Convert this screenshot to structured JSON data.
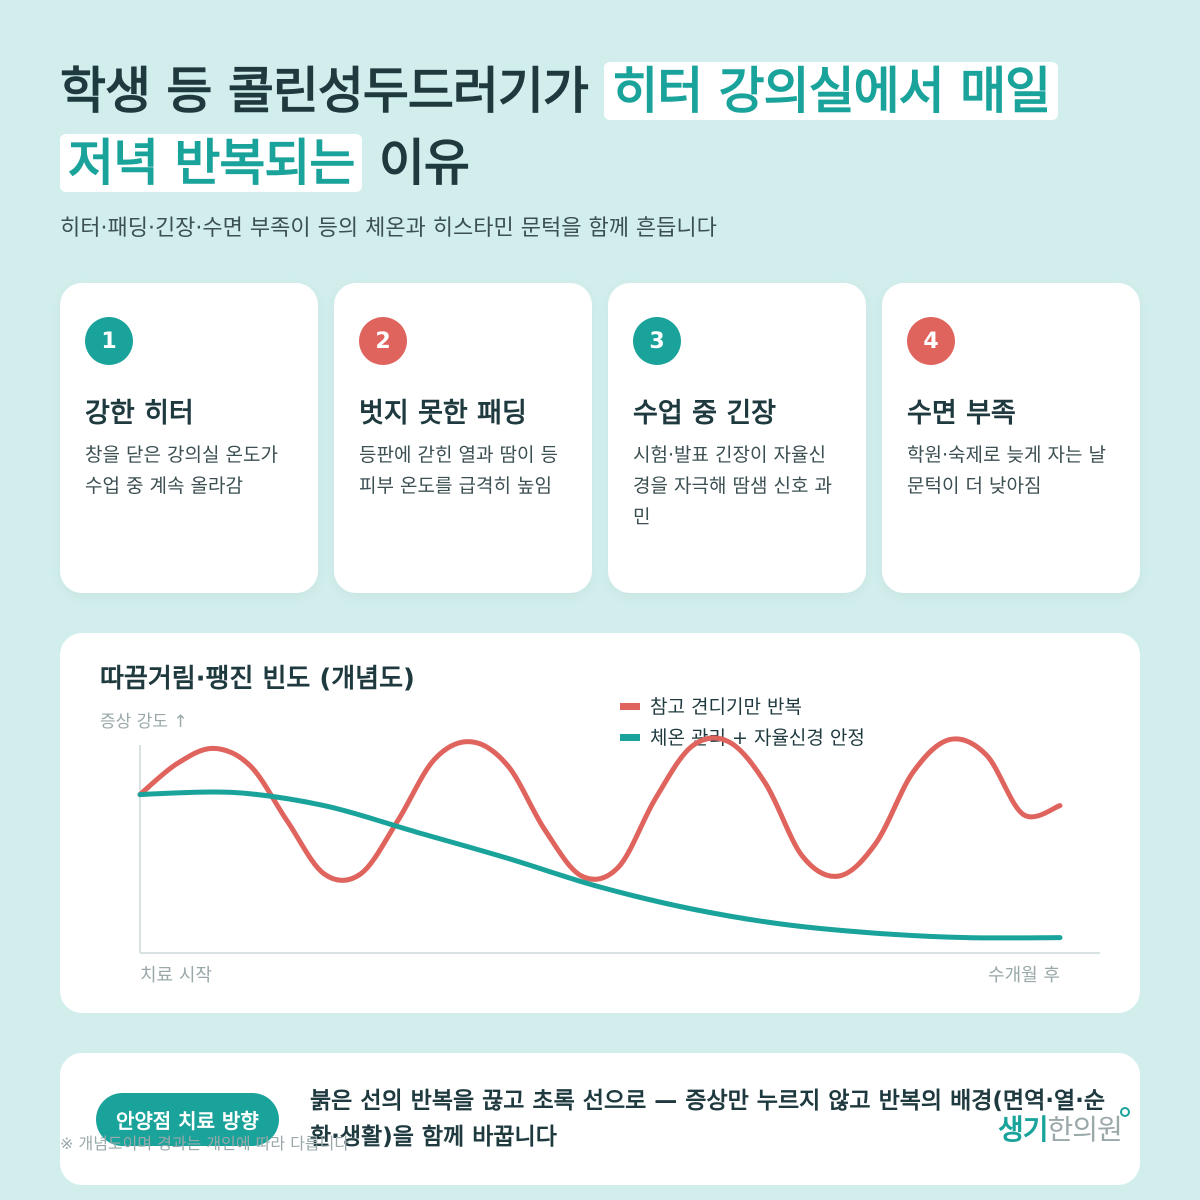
{
  "title": {
    "part1": "학생 등 콜린성두드러기가",
    "part2": "히터 강의실에서 매일",
    "part3": "저녁 반복되는",
    "part4": "이유"
  },
  "subtitle": "히터·패딩·긴장·수면 부족이 등의 체온과 히스타민 문턱을 함께 흔듭니다",
  "cards": [
    {
      "num": "1",
      "title": "강한 히터",
      "desc": "창을 닫은 강의실 온도가 수업 중 계속 올라감",
      "color": "#1aa39a"
    },
    {
      "num": "2",
      "title": "벗지 못한 패딩",
      "desc": "등판에 갇힌 열과 땀이 등 피부 온도를 급격히 높임",
      "color": "#e0645e"
    },
    {
      "num": "3",
      "title": "수업 중 긴장",
      "desc": "시험·발표 긴장이 자율신경을 자극해 땀샘 신호 과민",
      "color": "#1aa39a"
    },
    {
      "num": "4",
      "title": "수면 부족",
      "desc": "학원·숙제로 늦게 자는 날 문턱이 더 낮아짐",
      "color": "#e0645e"
    }
  ],
  "chart_data": {
    "type": "line",
    "title": "따끔거림·팽진 빈도 (개념도)",
    "ylabel": "증상 강도 ↑",
    "x_start_label": "치료 시작",
    "x_end_label": "수개월 후",
    "xlim": [
      0,
      1
    ],
    "ylim": [
      0,
      1
    ],
    "grid": false,
    "legend_position": "top-center",
    "series": [
      {
        "name": "참고 견디기만 반복",
        "color": "#e0645e",
        "x": [
          0,
          0.04,
          0.08,
          0.12,
          0.16,
          0.2,
          0.24,
          0.28,
          0.32,
          0.36,
          0.4,
          0.44,
          0.48,
          0.52,
          0.56,
          0.6,
          0.64,
          0.68,
          0.72,
          0.76,
          0.8,
          0.84,
          0.88,
          0.92,
          0.96,
          1.0
        ],
        "y": [
          0.72,
          0.86,
          0.93,
          0.85,
          0.6,
          0.36,
          0.36,
          0.6,
          0.88,
          0.96,
          0.85,
          0.56,
          0.35,
          0.39,
          0.7,
          0.94,
          0.96,
          0.77,
          0.44,
          0.35,
          0.5,
          0.82,
          0.97,
          0.9,
          0.63,
          0.67
        ],
        "note": ""
      },
      {
        "name": "체온 관리 + 자율신경 안정",
        "color": "#1aa39a",
        "x": [
          0,
          0.1,
          0.2,
          0.3,
          0.4,
          0.5,
          0.6,
          0.7,
          0.8,
          0.9,
          1.0
        ],
        "y": [
          0.72,
          0.73,
          0.67,
          0.55,
          0.43,
          0.3,
          0.2,
          0.13,
          0.09,
          0.07,
          0.07
        ]
      }
    ]
  },
  "bottom": {
    "pill": "안양점 치료 방향",
    "text": "붉은 선의 반복을 끊고 초록 선으로 — 증상만 누르지 않고 반복의 배경(면역·열·순환·생활)을 함께 바꿉니다"
  },
  "footnote": "※ 개념도이며 경과는 개인에 따라 다릅니다",
  "logo": {
    "part1": "생기",
    "part2": "한의원"
  }
}
